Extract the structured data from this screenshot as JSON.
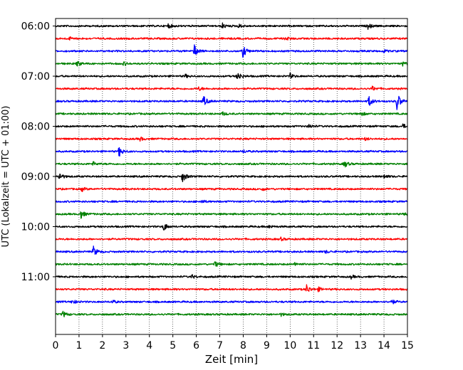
{
  "chart_data": {
    "type": "line",
    "title": "",
    "xlabel": "Zeit  [min]",
    "ylabel": "UTC (Lokalzeit = UTC + 01:00)",
    "xlim": [
      0,
      15
    ],
    "x_ticks": [
      0,
      1,
      2,
      3,
      4,
      5,
      6,
      7,
      8,
      9,
      10,
      11,
      12,
      13,
      14,
      15
    ],
    "grid": "vertical dotted at every minute",
    "ylim_traces": [
      -0.6,
      24.6
    ],
    "y_ticks": [
      {
        "trace_index": 0,
        "label": "06:00"
      },
      {
        "trace_index": 4,
        "label": "07:00"
      },
      {
        "trace_index": 8,
        "label": "08:00"
      },
      {
        "trace_index": 12,
        "label": "09:00"
      },
      {
        "trace_index": 16,
        "label": "10:00"
      },
      {
        "trace_index": 20,
        "label": "11:00"
      }
    ],
    "color_cycle": [
      "#000000",
      "#ff0000",
      "#0000ff",
      "#008000"
    ],
    "trace_interval_min": 15,
    "traces": [
      {
        "start": "06:00",
        "color": "#000000",
        "events": [
          [
            4.8,
            0.18
          ],
          [
            7.1,
            0.22
          ],
          [
            7.8,
            0.15
          ],
          [
            13.3,
            0.25
          ]
        ]
      },
      {
        "start": "06:15",
        "color": "#ff0000",
        "events": [
          [
            0.6,
            0.12
          ],
          [
            9.8,
            0.15
          ]
        ]
      },
      {
        "start": "06:30",
        "color": "#0000ff",
        "events": [
          [
            5.9,
            0.55
          ],
          [
            7.98,
            0.5
          ],
          [
            14.0,
            0.12
          ]
        ]
      },
      {
        "start": "06:45",
        "color": "#008000",
        "events": [
          [
            0.9,
            0.25
          ],
          [
            2.9,
            0.15
          ],
          [
            14.8,
            0.15
          ]
        ]
      },
      {
        "start": "07:00",
        "color": "#000000",
        "events": [
          [
            5.5,
            0.15
          ],
          [
            7.75,
            0.42
          ],
          [
            10.0,
            0.2
          ]
        ]
      },
      {
        "start": "07:15",
        "color": "#ff0000",
        "events": [
          [
            6.1,
            0.15
          ],
          [
            13.5,
            0.18
          ]
        ]
      },
      {
        "start": "07:30",
        "color": "#0000ff",
        "events": [
          [
            6.3,
            0.45
          ],
          [
            13.35,
            0.45
          ],
          [
            14.55,
            0.75
          ]
        ]
      },
      {
        "start": "07:45",
        "color": "#008000",
        "events": [
          [
            7.1,
            0.15
          ],
          [
            13.0,
            0.18
          ]
        ]
      },
      {
        "start": "08:00",
        "color": "#000000",
        "events": [
          [
            10.8,
            0.15
          ],
          [
            14.8,
            0.18
          ]
        ]
      },
      {
        "start": "08:15",
        "color": "#ff0000",
        "events": [
          [
            3.6,
            0.15
          ],
          [
            13.2,
            0.12
          ]
        ]
      },
      {
        "start": "08:30",
        "color": "#0000ff",
        "events": [
          [
            2.7,
            0.42
          ],
          [
            8.0,
            0.12
          ]
        ]
      },
      {
        "start": "08:45",
        "color": "#008000",
        "events": [
          [
            1.6,
            0.15
          ],
          [
            12.3,
            0.3
          ]
        ]
      },
      {
        "start": "09:00",
        "color": "#000000",
        "events": [
          [
            0.15,
            0.35
          ],
          [
            5.4,
            0.5
          ],
          [
            14.0,
            0.15
          ]
        ]
      },
      {
        "start": "09:15",
        "color": "#ff0000",
        "events": [
          [
            1.1,
            0.18
          ],
          [
            8.8,
            0.12
          ]
        ]
      },
      {
        "start": "09:30",
        "color": "#0000ff",
        "events": [
          [
            6.2,
            0.15
          ]
        ]
      },
      {
        "start": "09:45",
        "color": "#008000",
        "events": [
          [
            1.05,
            0.42
          ],
          [
            14.9,
            0.15
          ]
        ]
      },
      {
        "start": "10:00",
        "color": "#000000",
        "events": [
          [
            4.6,
            0.35
          ],
          [
            9.1,
            0.12
          ]
        ]
      },
      {
        "start": "10:15",
        "color": "#ff0000",
        "events": [
          [
            9.6,
            0.12
          ]
        ]
      },
      {
        "start": "10:30",
        "color": "#0000ff",
        "events": [
          [
            1.6,
            0.45
          ],
          [
            11.5,
            0.12
          ]
        ]
      },
      {
        "start": "10:45",
        "color": "#008000",
        "events": [
          [
            6.8,
            0.25
          ],
          [
            10.2,
            0.12
          ]
        ]
      },
      {
        "start": "11:00",
        "color": "#000000",
        "events": [
          [
            5.8,
            0.15
          ],
          [
            12.6,
            0.12
          ]
        ]
      },
      {
        "start": "11:15",
        "color": "#ff0000",
        "events": [
          [
            10.7,
            0.35
          ],
          [
            11.2,
            0.15
          ]
        ]
      },
      {
        "start": "11:30",
        "color": "#0000ff",
        "events": [
          [
            0.7,
            0.2
          ],
          [
            2.4,
            0.15
          ],
          [
            14.3,
            0.22
          ]
        ]
      },
      {
        "start": "11:45",
        "color": "#008000",
        "events": [
          [
            0.3,
            0.25
          ],
          [
            9.6,
            0.12
          ]
        ]
      }
    ]
  }
}
